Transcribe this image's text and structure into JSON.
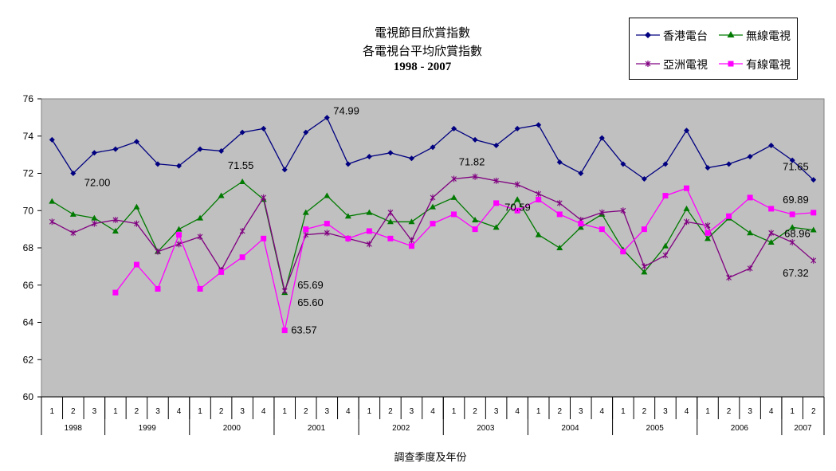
{
  "chart_data": {
    "type": "line",
    "title": [
      "電視節目欣賞指數",
      "各電視台平均欣賞指數",
      "1998 - 2007"
    ],
    "xlabel": "調查季度及年份",
    "ylabel": "",
    "ylim": [
      60,
      76
    ],
    "yticks": [
      60,
      62,
      64,
      66,
      68,
      70,
      72,
      74,
      76
    ],
    "grid": false,
    "legend_position": "top-right",
    "quarters": [
      "1",
      "2",
      "3",
      "1",
      "2",
      "3",
      "4",
      "1",
      "2",
      "3",
      "4",
      "1",
      "2",
      "3",
      "4",
      "1",
      "2",
      "3",
      "4",
      "1",
      "2",
      "3",
      "4",
      "1",
      "2",
      "3",
      "4",
      "1",
      "2",
      "3",
      "4",
      "1",
      "2",
      "3",
      "4",
      "1",
      "2"
    ],
    "years": [
      {
        "label": "1998",
        "start": 0,
        "count": 3
      },
      {
        "label": "1999",
        "start": 3,
        "count": 4
      },
      {
        "label": "2000",
        "start": 7,
        "count": 4
      },
      {
        "label": "2001",
        "start": 11,
        "count": 4
      },
      {
        "label": "2002",
        "start": 15,
        "count": 4
      },
      {
        "label": "2003",
        "start": 19,
        "count": 4
      },
      {
        "label": "2004",
        "start": 23,
        "count": 4
      },
      {
        "label": "2005",
        "start": 27,
        "count": 4
      },
      {
        "label": "2006",
        "start": 31,
        "count": 4
      },
      {
        "label": "2007",
        "start": 35,
        "count": 2
      }
    ],
    "series": [
      {
        "name": "香港電台",
        "color": "#000080",
        "marker": "diamond",
        "values": [
          73.8,
          72.0,
          73.1,
          73.3,
          73.7,
          72.5,
          72.4,
          73.3,
          73.2,
          74.2,
          74.4,
          72.2,
          74.2,
          74.99,
          72.5,
          72.9,
          73.1,
          72.8,
          73.4,
          74.4,
          73.8,
          73.5,
          74.4,
          74.6,
          72.6,
          72.0,
          73.9,
          72.5,
          71.7,
          72.5,
          74.3,
          72.3,
          72.5,
          72.9,
          73.5,
          72.7,
          71.65
        ]
      },
      {
        "name": "無線電視",
        "color": "#007a00",
        "marker": "triangle",
        "values": [
          70.5,
          69.8,
          69.6,
          68.9,
          70.2,
          67.8,
          69.0,
          69.6,
          70.8,
          71.55,
          70.6,
          65.6,
          69.9,
          70.8,
          69.7,
          69.9,
          69.4,
          69.4,
          70.2,
          70.7,
          69.5,
          69.1,
          70.6,
          68.7,
          68.0,
          69.1,
          69.8,
          67.9,
          66.7,
          68.1,
          70.1,
          68.5,
          69.6,
          68.8,
          68.3,
          69.1,
          68.96
        ]
      },
      {
        "name": "亞洲電視",
        "color": "#800080",
        "marker": "cross",
        "values": [
          69.4,
          68.8,
          69.3,
          69.5,
          69.3,
          67.8,
          68.2,
          68.6,
          66.8,
          68.9,
          70.7,
          65.69,
          68.7,
          68.8,
          68.5,
          68.2,
          69.9,
          68.4,
          70.7,
          71.7,
          71.82,
          71.6,
          71.4,
          70.9,
          70.4,
          69.5,
          69.9,
          70.0,
          67.0,
          67.6,
          69.4,
          69.2,
          66.4,
          66.9,
          68.8,
          68.3,
          67.32
        ]
      },
      {
        "name": "有線電視",
        "color": "#ff00ff",
        "marker": "square",
        "values": [
          null,
          null,
          null,
          65.6,
          67.1,
          65.8,
          68.7,
          65.8,
          66.7,
          67.5,
          68.5,
          63.57,
          69.0,
          69.3,
          68.5,
          68.9,
          68.5,
          68.1,
          69.3,
          69.8,
          69.0,
          70.4,
          70.0,
          70.59,
          69.8,
          69.3,
          69.0,
          67.8,
          69.0,
          70.8,
          71.2,
          68.8,
          69.7,
          70.7,
          70.1,
          69.8,
          69.89
        ]
      }
    ],
    "annotations": [
      {
        "text": "72.00",
        "series": 0,
        "index": 1
      },
      {
        "text": "74.99",
        "series": 0,
        "index": 13
      },
      {
        "text": "71.65",
        "series": 0,
        "index": 36
      },
      {
        "text": "71.55",
        "series": 1,
        "index": 9
      },
      {
        "text": "65.60",
        "series": 1,
        "index": 11
      },
      {
        "text": "68.96",
        "series": 1,
        "index": 36
      },
      {
        "text": "65.69",
        "series": 2,
        "index": 11
      },
      {
        "text": "71.82",
        "series": 2,
        "index": 20
      },
      {
        "text": "67.32",
        "series": 2,
        "index": 36
      },
      {
        "text": "63.57",
        "series": 3,
        "index": 11
      },
      {
        "text": "70.59",
        "series": 3,
        "index": 23
      },
      {
        "text": "69.89",
        "series": 3,
        "index": 36
      }
    ]
  }
}
